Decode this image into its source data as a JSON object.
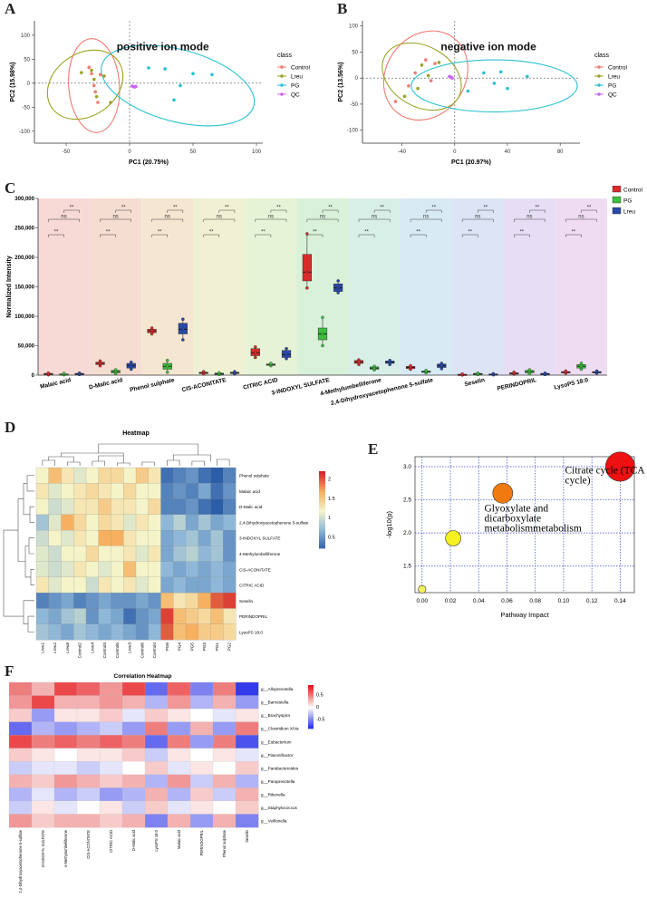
{
  "panel_letters": {
    "a": "A",
    "b": "B",
    "c": "C",
    "d": "D",
    "e": "E",
    "f": "F"
  },
  "colors": {
    "control": "#f27b73",
    "lreu": "#9aa426",
    "pg": "#29c2d0",
    "qc": "#cc66ee",
    "box_control": "#d92b2b",
    "box_pg": "#3dbe3d",
    "box_lreu": "#2a4aa8"
  },
  "chart_data": [
    {
      "id": "A",
      "type": "scatter",
      "annotation": "positive ion mode",
      "xlabel": "PC1 (20.75%)",
      "ylabel": "PC2 (15.98%)",
      "xlim": [
        -75,
        105
      ],
      "ylim": [
        -125,
        130
      ],
      "xticks": [
        -50,
        0,
        50,
        100
      ],
      "yticks": [
        -100,
        -50,
        0,
        50,
        100
      ],
      "legend_title": "class",
      "legend": [
        "Control",
        "Lreu",
        "PG",
        "QC"
      ],
      "series": [
        {
          "name": "Control",
          "points": [
            [
              -32,
              33
            ],
            [
              -28,
              -5
            ],
            [
              -30,
              20
            ],
            [
              -25,
              -40
            ],
            [
              -27,
              -18
            ],
            [
              -23,
              18
            ]
          ]
        },
        {
          "name": "Lreu",
          "points": [
            [
              -38,
              22
            ],
            [
              -30,
              27
            ],
            [
              -26,
              -28
            ],
            [
              -20,
              15
            ],
            [
              -15,
              -40
            ],
            [
              -28,
              8
            ]
          ]
        },
        {
          "name": "PG",
          "points": [
            [
              15,
              32
            ],
            [
              28,
              30
            ],
            [
              40,
              -5
            ],
            [
              50,
              20
            ],
            [
              65,
              18
            ],
            [
              35,
              -35
            ]
          ]
        },
        {
          "name": "QC",
          "points": [
            [
              3,
              -7
            ],
            [
              4,
              -8
            ],
            [
              2,
              -6
            ],
            [
              5,
              -7
            ]
          ]
        }
      ],
      "ellipses": [
        {
          "name": "Control",
          "cx": -28,
          "cy": -5,
          "rx": 20,
          "ry": 98,
          "rot": -4
        },
        {
          "name": "Lreu",
          "cx": -35,
          "cy": -3,
          "rx": 32,
          "ry": 65,
          "rot": -35
        },
        {
          "name": "PG",
          "cx": 38,
          "cy": -5,
          "rx": 62,
          "ry": 75,
          "rot": 15
        }
      ]
    },
    {
      "id": "B",
      "type": "scatter",
      "annotation": "negative ion mode",
      "xlabel": "PC1 (20.97%)",
      "ylabel": "PC2 (13.56%)",
      "xlim": [
        -70,
        95
      ],
      "ylim": [
        -125,
        110
      ],
      "xticks": [
        -40,
        0,
        40,
        80
      ],
      "yticks": [
        -100,
        -50,
        0,
        50,
        100
      ],
      "legend_title": "class",
      "legend": [
        "Control",
        "Lreu",
        "PG",
        "QC"
      ],
      "series": [
        {
          "name": "Control",
          "points": [
            [
              -45,
              -45
            ],
            [
              -30,
              10
            ],
            [
              -22,
              35
            ],
            [
              -15,
              28
            ],
            [
              -35,
              -15
            ],
            [
              -18,
              -5
            ]
          ]
        },
        {
          "name": "Lreu",
          "points": [
            [
              -38,
              -35
            ],
            [
              -25,
              25
            ],
            [
              -20,
              5
            ],
            [
              -12,
              30
            ],
            [
              -28,
              -20
            ]
          ]
        },
        {
          "name": "PG",
          "points": [
            [
              10,
              -25
            ],
            [
              22,
              10
            ],
            [
              35,
              12
            ],
            [
              40,
              -20
            ],
            [
              55,
              3
            ],
            [
              30,
              -10
            ]
          ]
        },
        {
          "name": "QC",
          "points": [
            [
              -3,
              2
            ],
            [
              -2,
              0
            ],
            [
              -4,
              3
            ]
          ]
        }
      ],
      "ellipses": [
        {
          "name": "Control",
          "cx": -22,
          "cy": 5,
          "rx": 30,
          "ry": 90,
          "rot": 35
        },
        {
          "name": "Lreu",
          "cx": -25,
          "cy": 3,
          "rx": 32,
          "ry": 58,
          "rot": 30
        },
        {
          "name": "PG",
          "cx": 30,
          "cy": -15,
          "rx": 63,
          "ry": 50,
          "rot": 0
        }
      ]
    },
    {
      "id": "C",
      "type": "boxplot",
      "ylabel": "Normalized Intensity",
      "ylim": [
        0,
        300000
      ],
      "yticks": [
        0,
        50000,
        100000,
        150000,
        200000,
        250000,
        300000
      ],
      "ytick_labels": [
        "0",
        "50,000",
        "100,000",
        "150,000",
        "200,000",
        "250,000",
        "300,000"
      ],
      "groups_legend": [
        "Control",
        "PG",
        "Lreu"
      ],
      "sig": [
        "**",
        "ns",
        "**"
      ],
      "bg_colors": [
        "#f7d9d6",
        "#f5ddd2",
        "#f5e6d2",
        "#f0f0d4",
        "#e6f3d6",
        "#d9f0d9",
        "#d8efe8",
        "#d8eaf3",
        "#dde4f5",
        "#e6def5",
        "#f0dcf2",
        "#f6d9e4"
      ],
      "categories": [
        "Malaic acid",
        "D-Malic acid",
        "Phenol sulphate",
        "CIS-ACONITATE",
        "CITRIC ACID",
        "3-INDOXYL SULFATE",
        "4-Methylumbelliferone",
        "2,4-Dihydroxyacetophenone 5-sulfate",
        "Seselin",
        "PERINDOPRIL",
        "LysoPS 18:0"
      ],
      "series": [
        {
          "name": "Control",
          "medians": [
            2000,
            20000,
            75000,
            4000,
            38000,
            175000,
            22000,
            13000,
            1000,
            3000,
            5000
          ],
          "q1": [
            1000,
            18000,
            72000,
            3000,
            33000,
            160000,
            20000,
            11000,
            500,
            2000,
            4000
          ],
          "q3": [
            3000,
            22000,
            78000,
            5000,
            45000,
            205000,
            25000,
            15000,
            1500,
            4000,
            6000
          ],
          "min": [
            500,
            16000,
            70000,
            2000,
            30000,
            148000,
            18000,
            10000,
            200,
            1500,
            3500
          ],
          "max": [
            3500,
            24000,
            80000,
            6000,
            48000,
            240000,
            26000,
            16000,
            2000,
            5000,
            7000
          ]
        },
        {
          "name": "PG",
          "medians": [
            1500,
            6000,
            15000,
            2500,
            18000,
            70000,
            12000,
            6000,
            2000,
            6000,
            15000
          ],
          "q1": [
            1000,
            4000,
            10000,
            1500,
            17000,
            60000,
            10000,
            5000,
            1500,
            4000,
            12000
          ],
          "q3": [
            2000,
            8000,
            20000,
            3500,
            19000,
            80000,
            14000,
            7000,
            3000,
            8000,
            18000
          ],
          "min": [
            500,
            3000,
            5000,
            1000,
            16000,
            50000,
            9000,
            4000,
            1000,
            2000,
            10000
          ],
          "max": [
            3000,
            9000,
            25000,
            4000,
            20000,
            98000,
            15000,
            8000,
            3500,
            9000,
            20000
          ]
        },
        {
          "name": "Lreu",
          "medians": [
            2000,
            16000,
            78000,
            4000,
            35000,
            148000,
            22000,
            16000,
            1500,
            2000,
            5000
          ],
          "q1": [
            1500,
            12000,
            70000,
            3000,
            30000,
            142000,
            20000,
            13000,
            1000,
            1500,
            4000
          ],
          "q3": [
            3000,
            20000,
            88000,
            5000,
            42000,
            155000,
            24000,
            19000,
            2000,
            3000,
            6000
          ],
          "min": [
            1000,
            10000,
            60000,
            2000,
            28000,
            140000,
            18000,
            11000,
            500,
            1000,
            3500
          ],
          "max": [
            3500,
            22000,
            95000,
            6000,
            45000,
            160000,
            25000,
            20000,
            2500,
            3500,
            7000
          ]
        }
      ]
    },
    {
      "id": "D",
      "type": "heatmap",
      "title": "Heatmap",
      "rows": [
        "Phenol sulphate",
        "Malaic acid",
        "D-Malic acid",
        "2,4-Dihydroxyacetophenone 5-sulfate",
        "3-INDOXYL SULFATE",
        "4-Methylumbelliferone",
        "CIS-ACONITATE",
        "CITRIC ACID",
        "Seselin",
        "PERINDOPRIL",
        "LysoPS 18:0"
      ],
      "cols": [
        "Lreu1",
        "Lreu2",
        "Lreu5",
        "Control2",
        "Lreu4",
        "Control3",
        "Control5",
        "Lreu3",
        "Control6",
        "Control4",
        "PG6",
        "PG4",
        "PG5",
        "PG3",
        "PG1",
        "PG2"
      ],
      "values": [
        [
          1.2,
          1.6,
          1.3,
          1.1,
          1.2,
          1.4,
          1.4,
          1.2,
          1.5,
          1.3,
          0.3,
          0.4,
          0.5,
          0.3,
          0.2,
          0.4
        ],
        [
          1.3,
          1.1,
          1.2,
          1.3,
          1.4,
          1.3,
          1.2,
          1.4,
          1.2,
          1.2,
          0.4,
          0.5,
          0.4,
          0.6,
          0.3,
          0.5
        ],
        [
          1.2,
          1.0,
          1.1,
          1.3,
          1.3,
          1.5,
          1.3,
          1.3,
          1.2,
          1.4,
          0.4,
          0.4,
          0.5,
          0.3,
          0.2,
          0.4
        ],
        [
          0.8,
          1.1,
          1.7,
          1.4,
          1.2,
          1.4,
          1.3,
          1.1,
          1.3,
          1.2,
          0.7,
          0.9,
          0.6,
          0.8,
          0.6,
          0.7
        ],
        [
          1.0,
          1.2,
          1.1,
          1.3,
          1.2,
          1.7,
          1.7,
          1.3,
          1.2,
          1.2,
          0.6,
          0.7,
          0.8,
          0.6,
          0.8,
          0.5
        ],
        [
          1.1,
          1.0,
          1.2,
          1.2,
          1.4,
          1.2,
          1.2,
          1.3,
          1.1,
          1.3,
          0.6,
          0.8,
          0.9,
          0.7,
          0.8,
          0.5
        ],
        [
          1.1,
          1.0,
          1.1,
          1.3,
          1.2,
          1.1,
          1.2,
          1.6,
          1.2,
          1.2,
          0.7,
          0.6,
          0.7,
          0.6,
          0.7,
          0.6
        ],
        [
          1.3,
          1.1,
          1.2,
          1.2,
          1.0,
          1.3,
          1.2,
          1.3,
          1.1,
          1.2,
          0.6,
          0.7,
          0.6,
          0.6,
          0.7,
          0.6
        ],
        [
          0.4,
          0.5,
          0.6,
          0.4,
          0.5,
          0.6,
          0.5,
          0.5,
          0.6,
          0.5,
          1.6,
          1.3,
          1.4,
          1.7,
          2.0,
          2.1
        ],
        [
          0.7,
          0.6,
          0.8,
          0.9,
          0.5,
          0.7,
          0.6,
          0.3,
          0.5,
          0.6,
          2.1,
          1.6,
          1.5,
          1.4,
          1.6,
          1.3
        ],
        [
          0.8,
          0.7,
          0.6,
          0.8,
          0.7,
          0.6,
          0.7,
          0.6,
          0.5,
          0.7,
          2.0,
          1.6,
          1.7,
          1.5,
          1.5,
          1.4
        ]
      ],
      "scale": {
        "min": 0.2,
        "max": 2.2,
        "ticks": [
          2,
          1.5,
          1,
          0.5
        ]
      }
    },
    {
      "id": "E",
      "type": "bubble",
      "xlabel": "Pathway Impact",
      "ylabel": "-log10(p)",
      "xlim": [
        -0.005,
        0.15
      ],
      "ylim": [
        1.1,
        3.15
      ],
      "xticks": [
        0,
        0.02,
        0.04,
        0.06,
        0.08,
        0.1,
        0.12,
        0.14
      ],
      "xtick_labels": [
        "0.00",
        "0.02",
        "0.04",
        "0.06",
        "0.08",
        "0.10",
        "0.12",
        "0.14"
      ],
      "yticks": [
        1.5,
        2.0,
        2.5,
        3.0
      ],
      "ytick_labels": [
        "1.5",
        "2.0",
        "2.5",
        "3.0"
      ],
      "points": [
        {
          "x": 0.14,
          "y": 3.0,
          "r": 0.95,
          "color": "#ee1111",
          "label": ""
        },
        {
          "x": 0.057,
          "y": 2.6,
          "r": 0.65,
          "color": "#f07a10",
          "label": ""
        },
        {
          "x": 0.022,
          "y": 1.92,
          "r": 0.5,
          "color": "#f5f020",
          "label": ""
        },
        {
          "x": 0.0,
          "y": 1.15,
          "r": 0.25,
          "color": "#f5f060",
          "label": ""
        }
      ],
      "annotations": [
        {
          "text": "Citrate cycle (TCA",
          "x": 0.101,
          "y": 2.9
        },
        {
          "text": "cycle)",
          "x": 0.101,
          "y": 2.75
        },
        {
          "text": "Glyoxylate and",
          "x": 0.044,
          "y": 2.32
        },
        {
          "text": "dicarboxylate",
          "x": 0.044,
          "y": 2.17
        },
        {
          "text": "metabolismmetabolism",
          "x": 0.044,
          "y": 2.02
        }
      ]
    },
    {
      "id": "F",
      "type": "heatmap",
      "title": "Correlation Heatmap",
      "rows": [
        "g__Alloprevotella",
        "g__Barnesiella",
        "g__Brachyspira",
        "g__Clostridium XIVa",
        "g__Eubacterium",
        "g__Flavonifractor",
        "g__Parabacteroides",
        "g__Paraprevotella",
        "g__Rikenella",
        "g__Staphylococcus",
        "g__Veillonella"
      ],
      "cols": [
        "2,4-Dihydroxyacetophenone 5-sulfate",
        "3-INDOXYL SULFATE",
        "4-Methylumbelliferone",
        "CIS-ACONITATE",
        "CITRIC ACID",
        "D-Malic acid",
        "LysoPS 18:0",
        "Malaic acid",
        "PERINDOPRIL",
        "Phenol sulphate",
        "Seselin"
      ],
      "values": [
        [
          0.5,
          0.3,
          0.7,
          0.6,
          0.4,
          0.7,
          -0.6,
          0.6,
          -0.5,
          0.5,
          -0.8
        ],
        [
          0.4,
          0.7,
          0.3,
          0.3,
          0.4,
          0.3,
          -0.3,
          0.4,
          -0.3,
          0.3,
          -0.4
        ],
        [
          0.2,
          -0.4,
          0.1,
          0.1,
          0.2,
          -0.1,
          0.2,
          0.1,
          0.0,
          -0.1,
          0.1
        ],
        [
          -0.6,
          -0.3,
          -0.4,
          -0.3,
          -0.2,
          -0.4,
          0.5,
          -0.4,
          0.3,
          -0.4,
          0.5
        ],
        [
          0.7,
          0.5,
          0.6,
          0.5,
          0.6,
          0.5,
          -0.6,
          0.5,
          -0.4,
          0.5,
          -0.7
        ],
        [
          0.2,
          0.1,
          0.0,
          0.1,
          0.1,
          0.2,
          -0.2,
          0.1,
          0.0,
          0.1,
          -0.1
        ],
        [
          -0.2,
          -0.1,
          -0.1,
          -0.2,
          -0.1,
          0.0,
          0.2,
          -0.1,
          0.1,
          0.0,
          0.2
        ],
        [
          0.3,
          0.2,
          0.4,
          0.3,
          0.2,
          0.3,
          -0.3,
          0.4,
          -0.2,
          0.3,
          -0.3
        ],
        [
          -0.3,
          -0.1,
          -0.3,
          -0.2,
          -0.4,
          -0.3,
          0.3,
          -0.3,
          0.2,
          -0.2,
          0.3
        ],
        [
          -0.2,
          0.1,
          -0.1,
          0.0,
          0.1,
          -0.2,
          0.2,
          -0.1,
          0.1,
          0.0,
          0.2
        ],
        [
          0.4,
          0.2,
          0.3,
          0.3,
          0.2,
          0.3,
          -0.5,
          0.3,
          -0.4,
          0.3,
          -0.5
        ]
      ],
      "scale": {
        "min": -0.9,
        "max": 0.9,
        "ticks": [
          0.5,
          0,
          -0.5
        ],
        "tick_labels": [
          "0.5",
          "0",
          "-0.5"
        ]
      }
    }
  ]
}
